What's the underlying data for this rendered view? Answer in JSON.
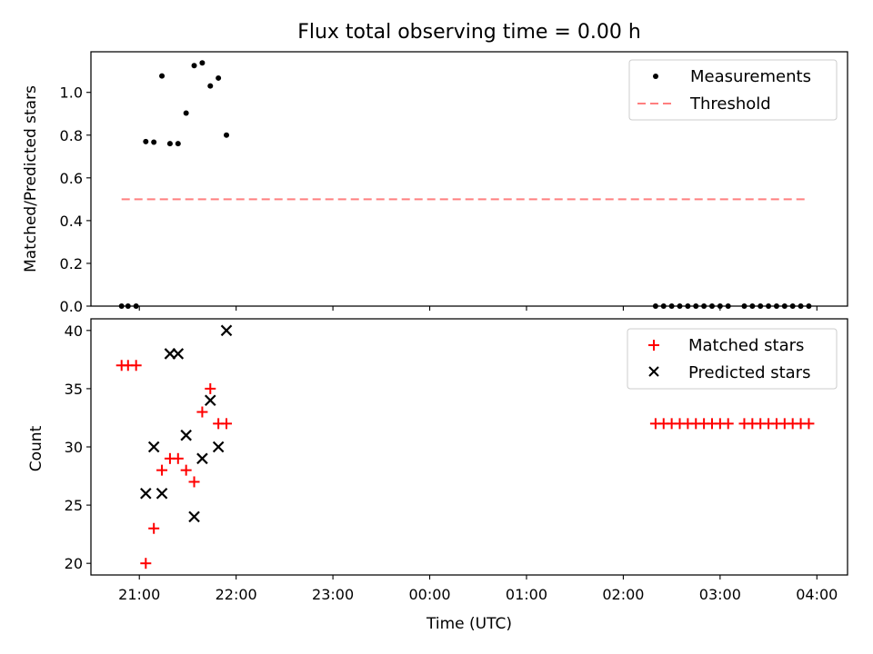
{
  "chart_data": [
    {
      "type": "scatter",
      "title": "Flux total observing time = 0.00 h",
      "xlabel": "",
      "ylabel": "Matched/Predicted stars",
      "ylim": [
        0,
        1.19
      ],
      "yticks": [
        "0.0",
        "0.2",
        "0.4",
        "0.6",
        "0.8",
        "1.0"
      ],
      "xticks": [
        "21:00",
        "22:00",
        "23:00",
        "00:00",
        "01:00",
        "02:00",
        "03:00",
        "04:00"
      ],
      "xtick_labels_visible": false,
      "legend": {
        "position": "top-right",
        "entries": [
          "Measurements",
          "Threshold"
        ]
      },
      "series": [
        {
          "name": "Measurements",
          "marker": "dot",
          "color": "#000000",
          "points": [
            [
              "20:49",
              0.0
            ],
            [
              "20:53",
              0.0
            ],
            [
              "20:58",
              0.0
            ],
            [
              "21:04",
              0.77
            ],
            [
              "21:09",
              0.767
            ],
            [
              "21:14",
              1.077
            ],
            [
              "21:19",
              0.76
            ],
            [
              "21:24",
              0.76
            ],
            [
              "21:29",
              0.903
            ],
            [
              "21:34",
              1.125
            ],
            [
              "21:39",
              1.138
            ],
            [
              "21:44",
              1.03
            ],
            [
              "21:49",
              1.067
            ],
            [
              "21:54",
              0.8
            ],
            [
              "02:20",
              0.0
            ],
            [
              "02:25",
              0.0
            ],
            [
              "02:30",
              0.0
            ],
            [
              "02:35",
              0.0
            ],
            [
              "02:40",
              0.0
            ],
            [
              "02:45",
              0.0
            ],
            [
              "02:50",
              0.0
            ],
            [
              "02:55",
              0.0
            ],
            [
              "03:00",
              0.0
            ],
            [
              "03:05",
              0.0
            ],
            [
              "03:15",
              0.0
            ],
            [
              "03:20",
              0.0
            ],
            [
              "03:25",
              0.0
            ],
            [
              "03:30",
              0.0
            ],
            [
              "03:35",
              0.0
            ],
            [
              "03:40",
              0.0
            ],
            [
              "03:45",
              0.0
            ],
            [
              "03:50",
              0.0
            ],
            [
              "03:55",
              0.0
            ]
          ]
        },
        {
          "name": "Threshold",
          "marker": "dashed-line",
          "color": "#ff7f7f",
          "points": [
            [
              "20:49",
              0.5
            ],
            [
              "03:55",
              0.5
            ]
          ]
        }
      ]
    },
    {
      "type": "scatter",
      "title": "",
      "xlabel": "Time (UTC)",
      "ylabel": "Count",
      "ylim": [
        19,
        41
      ],
      "yticks": [
        "20",
        "25",
        "30",
        "35",
        "40"
      ],
      "xticks": [
        "21:00",
        "22:00",
        "23:00",
        "00:00",
        "01:00",
        "02:00",
        "03:00",
        "04:00"
      ],
      "legend": {
        "position": "top-right",
        "entries": [
          "Matched stars",
          "Predicted stars"
        ]
      },
      "series": [
        {
          "name": "Matched stars",
          "marker": "plus",
          "color": "#ff0000",
          "points": [
            [
              "20:49",
              37
            ],
            [
              "20:53",
              37
            ],
            [
              "20:58",
              37
            ],
            [
              "21:04",
              20
            ],
            [
              "21:09",
              23
            ],
            [
              "21:14",
              28
            ],
            [
              "21:19",
              29
            ],
            [
              "21:24",
              29
            ],
            [
              "21:29",
              28
            ],
            [
              "21:34",
              27
            ],
            [
              "21:39",
              33
            ],
            [
              "21:44",
              35
            ],
            [
              "21:49",
              32
            ],
            [
              "21:54",
              32
            ],
            [
              "02:20",
              32
            ],
            [
              "02:25",
              32
            ],
            [
              "02:30",
              32
            ],
            [
              "02:35",
              32
            ],
            [
              "02:40",
              32
            ],
            [
              "02:45",
              32
            ],
            [
              "02:50",
              32
            ],
            [
              "02:55",
              32
            ],
            [
              "03:00",
              32
            ],
            [
              "03:05",
              32
            ],
            [
              "03:15",
              32
            ],
            [
              "03:20",
              32
            ],
            [
              "03:25",
              32
            ],
            [
              "03:30",
              32
            ],
            [
              "03:35",
              32
            ],
            [
              "03:40",
              32
            ],
            [
              "03:45",
              32
            ],
            [
              "03:50",
              32
            ],
            [
              "03:55",
              32
            ]
          ]
        },
        {
          "name": "Predicted stars",
          "marker": "x",
          "color": "#000000",
          "points": [
            [
              "21:04",
              26
            ],
            [
              "21:09",
              30
            ],
            [
              "21:14",
              26
            ],
            [
              "21:19",
              38
            ],
            [
              "21:24",
              38
            ],
            [
              "21:29",
              31
            ],
            [
              "21:34",
              24
            ],
            [
              "21:39",
              29
            ],
            [
              "21:44",
              34
            ],
            [
              "21:49",
              30
            ],
            [
              "21:54",
              40
            ]
          ]
        }
      ]
    }
  ]
}
